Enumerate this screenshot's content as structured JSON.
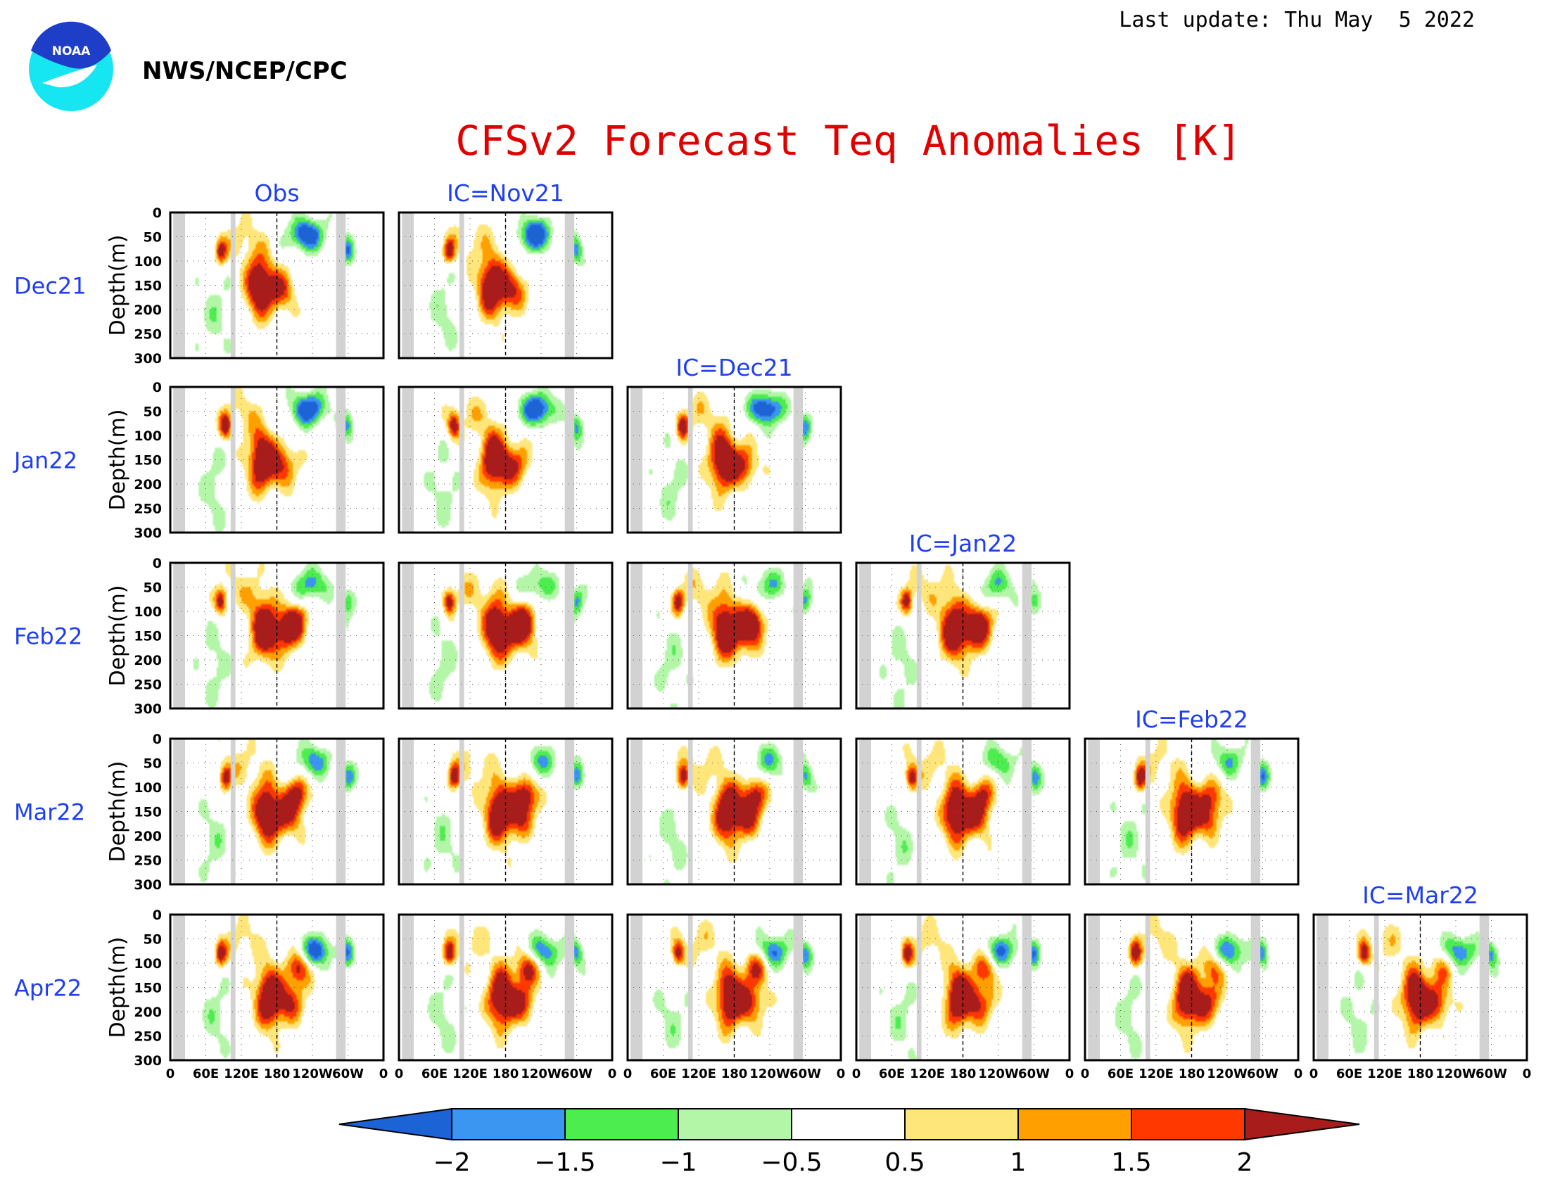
{
  "header": {
    "last_update": "Last update: Thu May  5 2022",
    "agency": "NWS/NCEP/CPC",
    "logo_text": "NOAA",
    "title": "CFSv2 Forecast Teq Anomalies [K]"
  },
  "colors": {
    "title": "#e00000",
    "label_blue": "#1f3ff0",
    "land_mask_gray": "#d2d2d2",
    "logo_outer": "#16e6f2",
    "logo_inner": "#1e3ec8"
  },
  "chart_data": {
    "type": "heatmap",
    "title": "CFSv2 Forecast Teq Anomalies [K]",
    "layout": "lower-triangular grid of panels: rows = target month, columns = Obs then forecast initial condition",
    "column_titles": [
      "Obs",
      "IC=Nov21",
      "IC=Dec21",
      "IC=Jan22",
      "IC=Feb22",
      "IC=Mar22"
    ],
    "row_labels": [
      "Dec21",
      "Jan22",
      "Feb22",
      "Mar22",
      "Apr22"
    ],
    "panels_per_row": [
      2,
      3,
      4,
      5,
      6
    ],
    "ylabel": "Depth(m)",
    "y_ticks": [
      "0",
      "50",
      "100",
      "150",
      "200",
      "250",
      "300"
    ],
    "ylim": [
      300,
      0
    ],
    "x_ticks": [
      "0",
      "60E",
      "120E",
      "180",
      "120W",
      "60W",
      "0"
    ],
    "x_range_deg": [
      0,
      360
    ],
    "colorbar": {
      "levels": [
        "-2",
        "-1.5",
        "-1",
        "-0.5",
        "0.5",
        "1",
        "1.5",
        "2"
      ],
      "colors": [
        "#1c63d6",
        "#3a96f0",
        "#4ced4e",
        "#b4f6a8",
        "#ffffff",
        "#ffe67a",
        "#ffa000",
        "#ff3800",
        "#a81c1c"
      ],
      "extend": "both"
    },
    "land_mask_bands_deg": [
      [
        5,
        25
      ],
      [
        102,
        110
      ],
      [
        280,
        296
      ]
    ],
    "dateline_deg": 180,
    "anomaly_features": [
      {
        "row": "Dec21",
        "col": "Obs",
        "warm_core": {
          "lon": 152,
          "depth": 160,
          "max": 2.5
        },
        "cold": {
          "lon": 225,
          "depth": 45,
          "min": -2
        }
      },
      {
        "row": "Jan22",
        "col": "Obs",
        "warm_core": {
          "lon": 165,
          "depth": 165,
          "max": 2.5
        },
        "cold": {
          "lon": 230,
          "depth": 50,
          "min": -2
        }
      },
      {
        "row": "Feb22",
        "col": "Obs",
        "warm_core": {
          "lon": 158,
          "depth": 140,
          "max": 2.5
        },
        "cold": {
          "lon": 255,
          "depth": 30,
          "min": -1.5
        }
      },
      {
        "row": "Mar22",
        "col": "Obs",
        "warm_core": {
          "lon": 150,
          "depth": 140,
          "max": 2.5
        },
        "cold": {
          "lon": 205,
          "depth": 30,
          "min": -1
        }
      },
      {
        "row": "Apr22",
        "col": "Obs",
        "warm_core": {
          "lon": 165,
          "depth": 180,
          "max": 2.5
        },
        "cold": {
          "lon": 240,
          "depth": 85,
          "min": -2
        }
      }
    ]
  }
}
